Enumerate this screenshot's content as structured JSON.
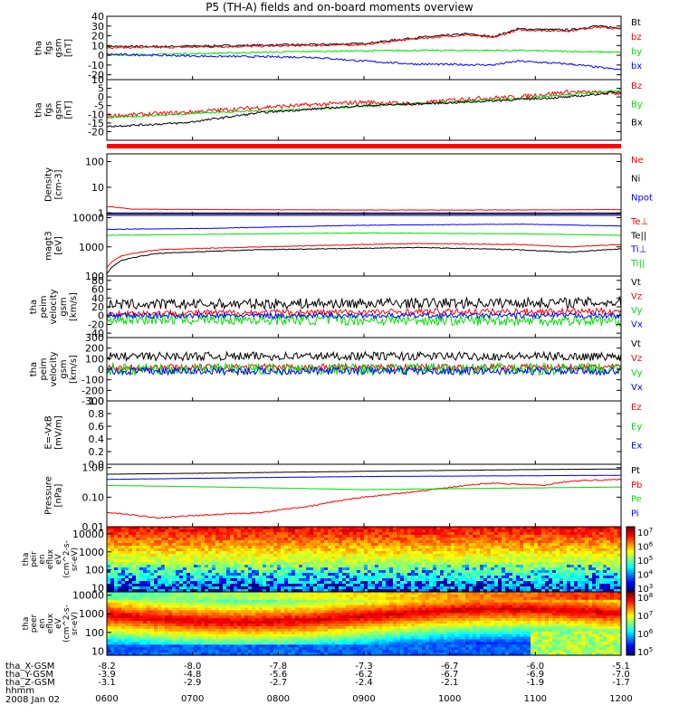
{
  "title": "P5 (TH-A) fields and on-board moments overview",
  "chart_data": {
    "type": "line",
    "time_ticks": [
      "0600",
      "0700",
      "0800",
      "0900",
      "1000",
      "1100",
      "1200"
    ],
    "date_label": "2008 Jan 02",
    "ephemeris": [
      {
        "label": "tha_X-GSM",
        "values": [
          "-8.2",
          "-8.0",
          "-7.8",
          "-7.3",
          "-6.7",
          "-6.0",
          "-5.1"
        ]
      },
      {
        "label": "tha_Y-GSM",
        "values": [
          "-3.9",
          "-4.8",
          "-5.6",
          "-6.2",
          "-6.7",
          "-6.9",
          "-7.0"
        ]
      },
      {
        "label": "tha_Z-GSM",
        "values": [
          "-3.1",
          "-2.9",
          "-2.7",
          "-2.4",
          "-2.1",
          "-1.9",
          "-1.7"
        ]
      },
      {
        "label": "hhmm",
        "values": []
      }
    ],
    "panels": [
      {
        "ylabel": [
          "tha",
          "fgs",
          "gsm",
          "[nT]"
        ],
        "scale": "linear",
        "ylim": [
          -25,
          40
        ],
        "ticks": [
          "40",
          "30",
          "20",
          "10",
          "0",
          "-10",
          "-20"
        ],
        "tick_values": [
          40,
          30,
          20,
          10,
          0,
          -10,
          -20
        ],
        "series": [
          {
            "name": "Bt",
            "color": "#000000",
            "x": [
              0,
              0.1,
              0.25,
              0.4,
              0.5,
              0.6,
              0.7,
              0.75,
              0.8,
              0.9,
              0.95,
              1
            ],
            "y": [
              9,
              9,
              10,
              11,
              12,
              18,
              22,
              19,
              27,
              26,
              30,
              28
            ],
            "noise": 1.0
          },
          {
            "name": "bz",
            "color": "#ff0000",
            "x": [
              0,
              0.1,
              0.25,
              0.4,
              0.5,
              0.6,
              0.7,
              0.75,
              0.8,
              0.9,
              0.95,
              1
            ],
            "y": [
              8,
              8,
              9,
              10,
              11,
              17,
              21,
              18,
              26,
              25,
              29,
              27
            ],
            "noise": 1.0
          },
          {
            "name": "by",
            "color": "#00dd00",
            "x": [
              0,
              0.2,
              0.4,
              0.6,
              0.8,
              1
            ],
            "y": [
              0,
              2,
              4,
              5,
              5,
              3
            ],
            "noise": 0.8
          },
          {
            "name": "bx",
            "color": "#0000ff",
            "x": [
              0,
              0.2,
              0.4,
              0.5,
              0.6,
              0.75,
              0.8,
              0.9,
              1
            ],
            "y": [
              1,
              -1,
              -2,
              -6,
              -9,
              -10,
              -6,
              -9,
              -15
            ],
            "noise": 1.0
          }
        ]
      },
      {
        "ylabel": [
          "tha",
          "fgs",
          "gsm",
          "[nT]"
        ],
        "scale": "linear",
        "ylim": [
          -25,
          10
        ],
        "ticks": [
          "10",
          "5",
          "0",
          "-5",
          "-10",
          "-15",
          "-20"
        ],
        "tick_values": [
          10,
          5,
          0,
          -5,
          -10,
          -15,
          -20
        ],
        "series": [
          {
            "name": "Bz",
            "color": "#ff0000",
            "x": [
              0,
              0.15,
              0.3,
              0.5,
              0.6,
              0.7,
              0.8,
              0.9,
              1
            ],
            "y": [
              -11,
              -9,
              -6,
              -3,
              -4,
              -1,
              0,
              3,
              2
            ],
            "noise": 1.2
          },
          {
            "name": "By",
            "color": "#00dd00",
            "x": [
              0,
              0.2,
              0.4,
              0.6,
              0.8,
              1
            ],
            "y": [
              -12,
              -9,
              -7,
              -4,
              -1,
              4
            ],
            "noise": 0.5
          },
          {
            "name": "Bx",
            "color": "#000000",
            "x": [
              0,
              0.15,
              0.3,
              0.5,
              0.7,
              0.9,
              1
            ],
            "y": [
              -17,
              -15,
              -9,
              -5,
              -3,
              0,
              3
            ],
            "noise": 0.6
          }
        ]
      },
      {
        "ylabel": [
          "Density",
          "[cm-3]"
        ],
        "scale": "log",
        "ylim": [
          0.8,
          200
        ],
        "ticks": [
          "100",
          "10",
          "1"
        ],
        "tick_values": [
          100,
          10,
          1
        ],
        "series": [
          {
            "name": "Ne",
            "color": "#ff0000",
            "x": [
              0,
              0.05,
              0.2,
              0.5,
              0.8,
              1
            ],
            "y": [
              1.8,
              1.4,
              1.35,
              1.3,
              1.3,
              1.35
            ],
            "noise": 0.02
          },
          {
            "name": "Ni",
            "color": "#000000",
            "x": [
              0,
              0.05,
              0.5,
              1
            ],
            "y": [
              1.0,
              1.0,
              1.0,
              1.0
            ],
            "noise": 0.01
          },
          {
            "name": "Npot",
            "color": "#0000ff",
            "x": [
              0,
              0.5,
              1
            ],
            "y": [
              0.9,
              0.9,
              0.9
            ],
            "noise": 0.0
          }
        ]
      },
      {
        "ylabel": [
          "magt3",
          "[eV]"
        ],
        "scale": "log",
        "ylim": [
          100,
          12000
        ],
        "ticks": [
          "10000",
          "1000",
          "100"
        ],
        "tick_values": [
          10000,
          1000,
          100
        ],
        "series": [
          {
            "name": "Te⊥",
            "color": "#ff0000",
            "x": [
              0,
              0.03,
              0.1,
              0.3,
              0.6,
              0.8,
              0.9,
              1
            ],
            "y": [
              200,
              500,
              800,
              1000,
              1300,
              1200,
              1000,
              1200
            ],
            "noise": 0.03
          },
          {
            "name": "Te||",
            "color": "#000000",
            "x": [
              0,
              0.03,
              0.1,
              0.3,
              0.6,
              0.8,
              0.9,
              1
            ],
            "y": [
              120,
              350,
              600,
              800,
              950,
              800,
              650,
              850
            ],
            "noise": 0.03
          },
          {
            "name": "Ti⊥",
            "color": "#0000ff",
            "x": [
              0,
              0.2,
              0.5,
              0.8,
              1
            ],
            "y": [
              4000,
              4300,
              5500,
              6000,
              5200
            ],
            "noise": 0.02
          },
          {
            "name": "Ti||",
            "color": "#00dd00",
            "x": [
              0,
              0.2,
              0.5,
              0.8,
              1
            ],
            "y": [
              2500,
              2700,
              3000,
              2800,
              2500
            ],
            "noise": 0.02
          }
        ]
      },
      {
        "ylabel": [
          "tha",
          "peim",
          "velocity",
          "gsm",
          "[km/s]"
        ],
        "scale": "linear",
        "ylim": [
          -50,
          90
        ],
        "ticks": [
          "80",
          "60",
          "40",
          "20",
          "0",
          "-20",
          "-40"
        ],
        "tick_values": [
          80,
          60,
          40,
          20,
          0,
          -20,
          -40
        ],
        "series": [
          {
            "name": "Vt",
            "color": "#000000",
            "x": [
              0,
              0.5,
              1
            ],
            "y": [
              25,
              28,
              30
            ],
            "noise": 12
          },
          {
            "name": "Vz",
            "color": "#ff0000",
            "x": [
              0,
              0.5,
              1
            ],
            "y": [
              5,
              8,
              10
            ],
            "noise": 7
          },
          {
            "name": "Vy",
            "color": "#00dd00",
            "x": [
              0,
              0.5,
              1
            ],
            "y": [
              -8,
              -10,
              -12
            ],
            "noise": 12
          },
          {
            "name": "Vx",
            "color": "#0000ff",
            "x": [
              0,
              0.5,
              1
            ],
            "y": [
              0,
              0,
              0
            ],
            "noise": 6
          }
        ]
      },
      {
        "ylabel": [
          "tha",
          "peim",
          "velocity",
          "gsm",
          "[km/s]"
        ],
        "scale": "linear",
        "ylim": [
          -300,
          300
        ],
        "ticks": [
          "300",
          "200",
          "100",
          "0",
          "-100",
          "-200",
          "-300"
        ],
        "tick_values": [
          300,
          200,
          100,
          0,
          -100,
          -200,
          -300
        ],
        "series": [
          {
            "name": "Vt",
            "color": "#000000",
            "x": [
              0,
              0.5,
              1
            ],
            "y": [
              120,
              125,
              120
            ],
            "noise": 40
          },
          {
            "name": "Vz",
            "color": "#ff0000",
            "x": [
              0,
              0.5,
              1
            ],
            "y": [
              20,
              20,
              20
            ],
            "noise": 30
          },
          {
            "name": "Vy",
            "color": "#00dd00",
            "x": [
              0,
              0.5,
              1
            ],
            "y": [
              0,
              0,
              0
            ],
            "noise": 55
          },
          {
            "name": "Vx",
            "color": "#0000ff",
            "x": [
              0,
              0.5,
              1
            ],
            "y": [
              -20,
              -15,
              -20
            ],
            "noise": 35
          }
        ]
      },
      {
        "ylabel": [
          "E=-VxB",
          "[mV/m]"
        ],
        "scale": "linear",
        "ylim": [
          0,
          1
        ],
        "ticks": [
          "1.0",
          "0.8",
          "0.6",
          "0.4",
          "0.2",
          "0.0"
        ],
        "tick_values": [
          1.0,
          0.8,
          0.6,
          0.4,
          0.2,
          0.0
        ],
        "series": [
          {
            "name": "Ez",
            "color": "#ff0000",
            "x": [],
            "y": [],
            "noise": 0
          },
          {
            "name": "Ey",
            "color": "#00dd00",
            "x": [],
            "y": [],
            "noise": 0
          },
          {
            "name": "Ex",
            "color": "#0000ff",
            "x": [],
            "y": [],
            "noise": 0
          }
        ]
      },
      {
        "ylabel": [
          "Pressure",
          "[nPa]"
        ],
        "scale": "log",
        "ylim": [
          0.01,
          1.3
        ],
        "ticks": [
          "1.00",
          "0.10",
          "0.01"
        ],
        "tick_values": [
          1.0,
          0.1,
          0.01
        ],
        "series": [
          {
            "name": "Pt",
            "color": "#000000",
            "x": [
              0,
              0.2,
              0.5,
              0.8,
              1
            ],
            "y": [
              0.6,
              0.65,
              0.75,
              0.85,
              0.9
            ],
            "noise": 0.01
          },
          {
            "name": "Pb",
            "color": "#ff0000",
            "x": [
              0,
              0.1,
              0.3,
              0.4,
              0.5,
              0.6,
              0.75,
              0.85,
              0.9,
              1
            ],
            "y": [
              0.03,
              0.02,
              0.03,
              0.05,
              0.1,
              0.15,
              0.3,
              0.25,
              0.35,
              0.4
            ],
            "noise": 0.05
          },
          {
            "name": "Pe",
            "color": "#00dd00",
            "x": [
              0,
              0.5,
              1
            ],
            "y": [
              0.25,
              0.18,
              0.22
            ],
            "noise": 0.01
          },
          {
            "name": "Pi",
            "color": "#0000ff",
            "x": [
              0,
              0.5,
              1
            ],
            "y": [
              0.4,
              0.5,
              0.55
            ],
            "noise": 0.01
          }
        ]
      }
    ],
    "spectrograms": [
      {
        "ylabel": [
          "tha",
          "peir",
          "en",
          "eflux",
          "eV",
          "(cm^2-s-",
          "sr-eV)"
        ],
        "ticks": [
          "10000",
          "1000",
          "100",
          "10"
        ],
        "tick_values": [
          10000,
          1000,
          100,
          10
        ],
        "ylim": [
          6,
          25000
        ],
        "colorbar_ticks": [
          "10^7",
          "10^6",
          "10^5",
          "10^4",
          "10^3"
        ]
      },
      {
        "ylabel": [
          "tha",
          "peer",
          "en",
          "eflux",
          "eV",
          "(cm^2-s-",
          "sr-eV)"
        ],
        "ticks": [
          "10000",
          "1000",
          "100",
          "10"
        ],
        "tick_values": [
          10000,
          1000,
          100,
          10
        ],
        "ylim": [
          6,
          15000
        ],
        "colorbar_ticks": [
          "10^8",
          "10^7",
          "10^6",
          "10^5"
        ]
      }
    ]
  }
}
